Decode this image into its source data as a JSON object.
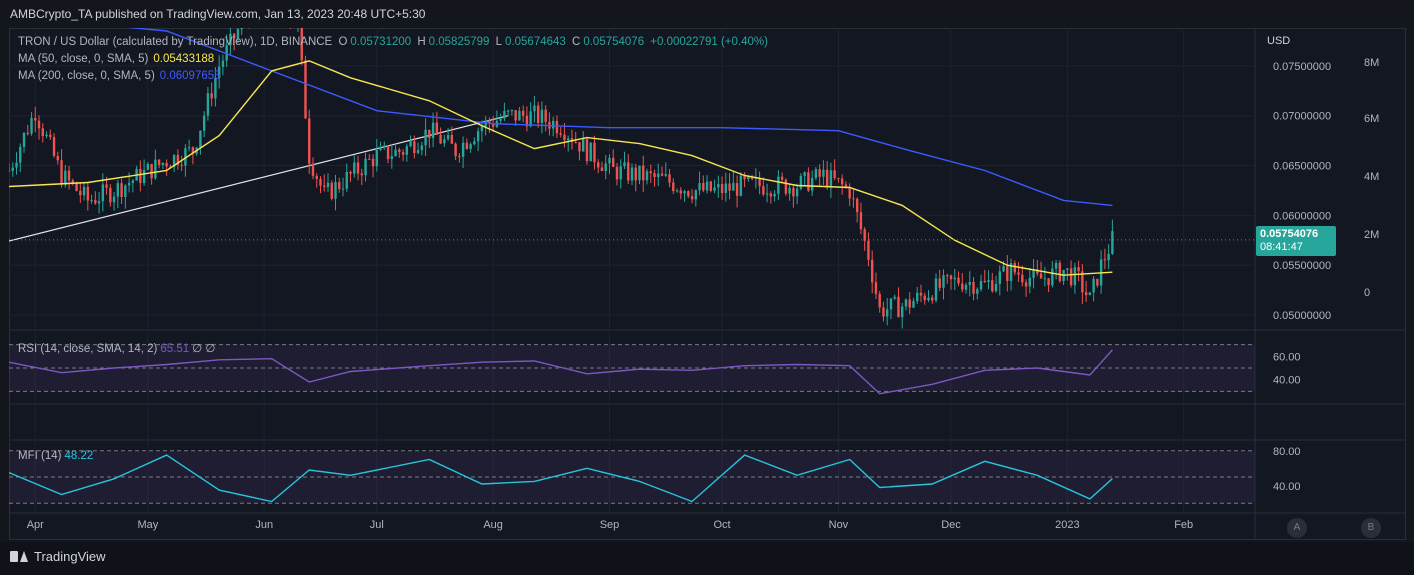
{
  "publisher": "AMBCrypto_TA published on TradingView.com, Jan 13, 2023 20:48 UTC+5:30",
  "legend": {
    "title": "TRON / US Dollar (calculated by TradingView), 1D, BINANCE",
    "o_label": "O",
    "o": "0.05731200",
    "h_label": "H",
    "h": "0.05825799",
    "l_label": "L",
    "l": "0.05674643",
    "c_label": "C",
    "c": "0.05754076",
    "change": "+0.00022791 (+0.40%)",
    "ma50_label": "MA (50, close, 0, SMA, 5)",
    "ma50": "0.05433188",
    "ma200_label": "MA (200, close, 0, SMA, 5)",
    "ma200": "0.06097655",
    "rsi_label": "RSI (14, close, SMA, 14, 2)",
    "rsi": "65.51",
    "rsi_extra": "∅ ∅",
    "mfi_label": "MFI (14)",
    "mfi": "48.22"
  },
  "price_box": {
    "price": "0.05754076",
    "countdown": "08:41:47"
  },
  "footer": {
    "brand": "TradingView",
    "btn_a": "A",
    "btn_b": "B"
  },
  "colors": {
    "up": "#26a69a",
    "down": "#ef5350",
    "ma50": "#f7e64f",
    "ma200": "#3d5afe",
    "rsi": "#7e57c2",
    "mfi": "#26c6da",
    "bg": "#131722"
  },
  "chart_data": {
    "type": "candlestick",
    "currency": "USD",
    "price_axis": {
      "ticks": [
        "0.07500000",
        "0.07000000",
        "0.06500000",
        "0.06000000",
        "0.05500000",
        "0.05000000"
      ],
      "range": [
        0.0485,
        0.0788
      ]
    },
    "volume_axis": {
      "ticks": [
        "8M",
        "6M",
        "4M",
        "2M",
        "0"
      ]
    },
    "time_axis": {
      "ticks": [
        "Apr",
        "May",
        "Jun",
        "Jul",
        "Aug",
        "Sep",
        "Oct",
        "Nov",
        "Dec",
        "2023",
        "Feb"
      ]
    },
    "rsi_axis": {
      "ticks": [
        "60.00",
        "40.00"
      ],
      "range": [
        20,
        80
      ]
    },
    "mfi_axis": {
      "ticks": [
        "80.00",
        "40.00"
      ],
      "range": [
        10,
        90
      ]
    },
    "series": [
      {
        "name": "TRON / US Dollar",
        "key": "close",
        "points": [
          [
            "2022-03-25",
            0.0645
          ],
          [
            "2022-04-01",
            0.0705
          ],
          [
            "2022-04-08",
            0.064
          ],
          [
            "2022-04-15",
            0.0615
          ],
          [
            "2022-04-22",
            0.0625
          ],
          [
            "2022-04-29",
            0.064
          ],
          [
            "2022-05-06",
            0.0655
          ],
          [
            "2022-05-13",
            0.0665
          ],
          [
            "2022-05-20",
            0.075
          ],
          [
            "2022-05-27",
            0.08
          ],
          [
            "2022-06-03",
            0.082
          ],
          [
            "2022-06-10",
            0.079
          ],
          [
            "2022-06-13",
            0.066
          ],
          [
            "2022-06-17",
            0.062
          ],
          [
            "2022-06-24",
            0.064
          ],
          [
            "2022-07-01",
            0.066
          ],
          [
            "2022-07-08",
            0.0665
          ],
          [
            "2022-07-15",
            0.0685
          ],
          [
            "2022-07-22",
            0.0665
          ],
          [
            "2022-07-29",
            0.069
          ],
          [
            "2022-08-05",
            0.07
          ],
          [
            "2022-08-12",
            0.07
          ],
          [
            "2022-08-19",
            0.069
          ],
          [
            "2022-08-26",
            0.0665
          ],
          [
            "2022-09-02",
            0.0645
          ],
          [
            "2022-09-09",
            0.064
          ],
          [
            "2022-09-16",
            0.0635
          ],
          [
            "2022-09-23",
            0.0625
          ],
          [
            "2022-09-30",
            0.0625
          ],
          [
            "2022-10-07",
            0.063
          ],
          [
            "2022-10-14",
            0.063
          ],
          [
            "2022-10-21",
            0.063
          ],
          [
            "2022-10-28",
            0.064
          ],
          [
            "2022-11-04",
            0.0625
          ],
          [
            "2022-11-09",
            0.056
          ],
          [
            "2022-11-12",
            0.0505
          ],
          [
            "2022-11-19",
            0.051
          ],
          [
            "2022-11-26",
            0.0525
          ],
          [
            "2022-12-03",
            0.0535
          ],
          [
            "2022-12-10",
            0.053
          ],
          [
            "2022-12-17",
            0.0545
          ],
          [
            "2022-12-24",
            0.0535
          ],
          [
            "2022-12-31",
            0.0545
          ],
          [
            "2023-01-04",
            0.0535
          ],
          [
            "2023-01-07",
            0.0515
          ],
          [
            "2023-01-10",
            0.055
          ],
          [
            "2023-01-13",
            0.0575
          ]
        ]
      },
      {
        "name": "MA (50)",
        "key": "ma50",
        "points": [
          [
            "2022-03-25",
            0.0629
          ],
          [
            "2022-04-15",
            0.0633
          ],
          [
            "2022-05-06",
            0.0645
          ],
          [
            "2022-05-20",
            0.068
          ],
          [
            "2022-06-03",
            0.0745
          ],
          [
            "2022-06-13",
            0.0755
          ],
          [
            "2022-06-24",
            0.0738
          ],
          [
            "2022-07-15",
            0.0715
          ],
          [
            "2022-07-29",
            0.069
          ],
          [
            "2022-08-12",
            0.0667
          ],
          [
            "2022-08-26",
            0.0678
          ],
          [
            "2022-09-09",
            0.0672
          ],
          [
            "2022-09-23",
            0.066
          ],
          [
            "2022-10-07",
            0.064
          ],
          [
            "2022-10-21",
            0.063
          ],
          [
            "2022-11-04",
            0.0628
          ],
          [
            "2022-11-18",
            0.061
          ],
          [
            "2022-12-02",
            0.0575
          ],
          [
            "2022-12-16",
            0.055
          ],
          [
            "2022-12-31",
            0.054
          ],
          [
            "2023-01-13",
            0.0543
          ]
        ]
      },
      {
        "name": "MA (200)",
        "key": "ma200",
        "points": [
          [
            "2022-03-25",
            0.08
          ],
          [
            "2022-05-06",
            0.0785
          ],
          [
            "2022-06-03",
            0.0745
          ],
          [
            "2022-07-01",
            0.0705
          ],
          [
            "2022-08-01",
            0.0692
          ],
          [
            "2022-09-01",
            0.0688
          ],
          [
            "2022-10-01",
            0.0688
          ],
          [
            "2022-11-01",
            0.0685
          ],
          [
            "2022-11-20",
            0.0665
          ],
          [
            "2022-12-10",
            0.0645
          ],
          [
            "2022-12-31",
            0.0615
          ],
          [
            "2023-01-13",
            0.061
          ]
        ]
      },
      {
        "name": "RSI (14)",
        "key": "rsi",
        "points": [
          [
            "2022-03-25",
            55
          ],
          [
            "2022-04-08",
            46
          ],
          [
            "2022-04-22",
            50
          ],
          [
            "2022-05-06",
            53
          ],
          [
            "2022-05-20",
            57
          ],
          [
            "2022-06-03",
            58
          ],
          [
            "2022-06-13",
            38
          ],
          [
            "2022-06-24",
            47
          ],
          [
            "2022-07-15",
            52
          ],
          [
            "2022-07-29",
            55
          ],
          [
            "2022-08-12",
            56
          ],
          [
            "2022-08-26",
            45
          ],
          [
            "2022-09-09",
            49
          ],
          [
            "2022-09-23",
            48
          ],
          [
            "2022-10-07",
            52
          ],
          [
            "2022-10-21",
            53
          ],
          [
            "2022-11-04",
            52
          ],
          [
            "2022-11-12",
            28
          ],
          [
            "2022-11-26",
            36
          ],
          [
            "2022-12-10",
            48
          ],
          [
            "2022-12-24",
            50
          ],
          [
            "2023-01-07",
            44
          ],
          [
            "2023-01-13",
            65.51
          ]
        ]
      },
      {
        "name": "MFI (14)",
        "key": "mfi",
        "points": [
          [
            "2022-03-25",
            55
          ],
          [
            "2022-04-08",
            30
          ],
          [
            "2022-04-22",
            48
          ],
          [
            "2022-05-06",
            75
          ],
          [
            "2022-05-20",
            35
          ],
          [
            "2022-06-03",
            22
          ],
          [
            "2022-06-13",
            58
          ],
          [
            "2022-06-24",
            52
          ],
          [
            "2022-07-15",
            70
          ],
          [
            "2022-07-29",
            42
          ],
          [
            "2022-08-12",
            45
          ],
          [
            "2022-08-26",
            60
          ],
          [
            "2022-09-09",
            45
          ],
          [
            "2022-09-23",
            22
          ],
          [
            "2022-10-07",
            75
          ],
          [
            "2022-10-21",
            52
          ],
          [
            "2022-11-04",
            70
          ],
          [
            "2022-11-12",
            38
          ],
          [
            "2022-11-26",
            42
          ],
          [
            "2022-12-10",
            68
          ],
          [
            "2022-12-24",
            52
          ],
          [
            "2023-01-07",
            25
          ],
          [
            "2023-01-13",
            48.22
          ]
        ]
      }
    ]
  }
}
